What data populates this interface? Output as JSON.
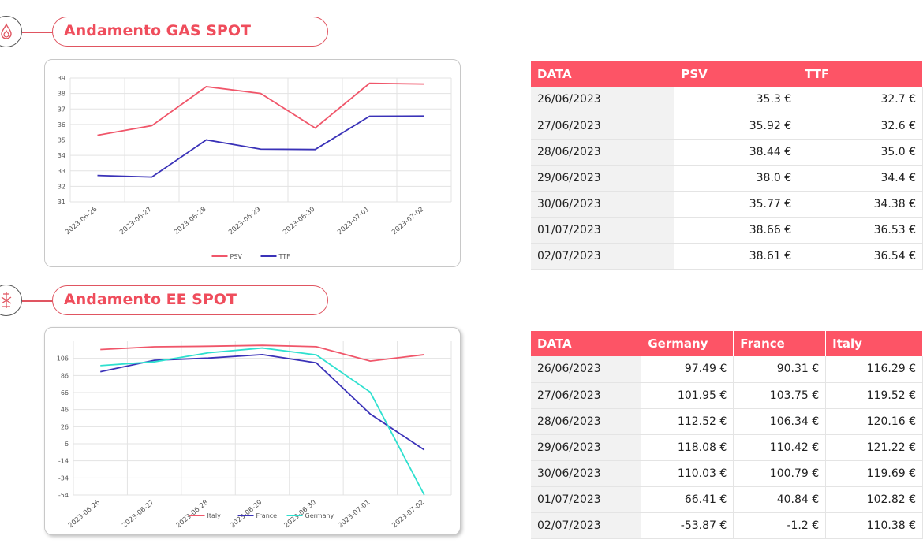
{
  "sections": {
    "gas_title": "Andamento GAS SPOT",
    "ee_title": "Andamento EE SPOT"
  },
  "gas_table": {
    "headers": [
      "DATA",
      "PSV",
      "TTF"
    ],
    "rows": [
      [
        "26/06/2023",
        "35.3 €",
        "32.7 €"
      ],
      [
        "27/06/2023",
        "35.92 €",
        "32.6 €"
      ],
      [
        "28/06/2023",
        "38.44 €",
        "35.0 €"
      ],
      [
        "29/06/2023",
        "38.0 €",
        "34.4 €"
      ],
      [
        "30/06/2023",
        "35.77 €",
        "34.38 €"
      ],
      [
        "01/07/2023",
        "38.66 €",
        "36.53 €"
      ],
      [
        "02/07/2023",
        "38.61 €",
        "36.54 €"
      ]
    ]
  },
  "ee_table": {
    "headers": [
      "DATA",
      "Germany",
      "France",
      "Italy"
    ],
    "rows": [
      [
        "26/06/2023",
        "97.49 €",
        "90.31 €",
        "116.29 €"
      ],
      [
        "27/06/2023",
        "101.95 €",
        "103.75 €",
        "119.52 €"
      ],
      [
        "28/06/2023",
        "112.52 €",
        "106.34 €",
        "120.16 €"
      ],
      [
        "29/06/2023",
        "118.08 €",
        "110.42 €",
        "121.22 €"
      ],
      [
        "30/06/2023",
        "110.03 €",
        "100.79 €",
        "119.69 €"
      ],
      [
        "01/07/2023",
        "66.41 €",
        "40.84 €",
        "102.82 €"
      ],
      [
        "02/07/2023",
        "-53.87 €",
        "-1.2 €",
        "110.38 €"
      ]
    ]
  },
  "chart_data": [
    {
      "type": "line",
      "title": "",
      "categories": [
        "2023-06-26",
        "2023-06-27",
        "2023-06-28",
        "2023-06-29",
        "2023-06-30",
        "2023-07-01",
        "2023-07-02"
      ],
      "yticks": [
        "31",
        "32",
        "33",
        "34",
        "35",
        "36",
        "37",
        "38",
        "39"
      ],
      "ylim": [
        31,
        39
      ],
      "series": [
        {
          "name": "PSV",
          "color": "#f0566a",
          "values": [
            35.3,
            35.92,
            38.44,
            38.0,
            35.77,
            38.66,
            38.61
          ]
        },
        {
          "name": "TTF",
          "color": "#3a32b8",
          "values": [
            32.7,
            32.6,
            35.0,
            34.4,
            34.38,
            36.53,
            36.54
          ]
        }
      ],
      "legend": "bottom"
    },
    {
      "type": "line",
      "title": "",
      "categories": [
        "2023-06-26",
        "2023-06-27",
        "2023-06-28",
        "2023-06-29",
        "2023-06-30",
        "2023-07-01",
        "2023-07-02"
      ],
      "yticks": [
        "-54",
        "-34",
        "-14",
        "6",
        "26",
        "46",
        "66",
        "86",
        "106"
      ],
      "ylim": [
        -54,
        126
      ],
      "series": [
        {
          "name": "Italy",
          "color": "#f0566a",
          "values": [
            116.29,
            119.52,
            120.16,
            121.22,
            119.69,
            102.82,
            110.38
          ]
        },
        {
          "name": "France",
          "color": "#3a32b8",
          "values": [
            90.31,
            103.75,
            106.34,
            110.42,
            100.79,
            40.84,
            -1.2
          ]
        },
        {
          "name": "Germany",
          "color": "#2ee0cf",
          "values": [
            97.49,
            101.95,
            112.52,
            118.08,
            110.03,
            66.41,
            -53.87
          ]
        }
      ],
      "legend": "bottom"
    }
  ]
}
